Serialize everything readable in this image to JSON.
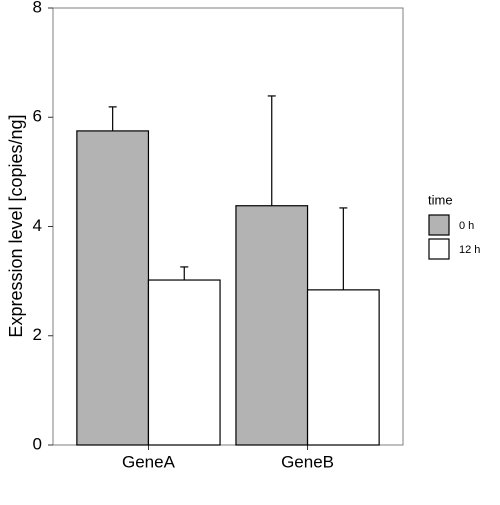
{
  "chart_data": {
    "type": "bar",
    "y_label": "Expression level [copies/ng]",
    "categories": [
      "GeneA",
      "GeneB"
    ],
    "legend_title": "time",
    "series": [
      {
        "name": "0 h",
        "color": "#b3b3b3",
        "values": [
          5.75,
          4.38
        ],
        "errors": [
          0.44,
          2.01
        ]
      },
      {
        "name": "12 h",
        "color": "#ffffff",
        "values": [
          3.02,
          2.84
        ],
        "errors": [
          0.24,
          1.5
        ]
      }
    ],
    "ylim": [
      0,
      8
    ],
    "yticks": [
      0,
      2,
      4,
      6,
      8
    ],
    "grid": false
  }
}
